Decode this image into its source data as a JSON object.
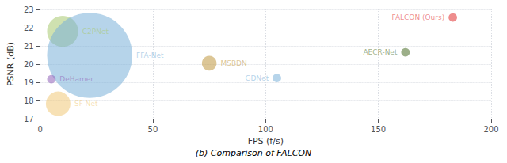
{
  "chart_data": {
    "type": "scatter",
    "title": "(b) Comparison of FALCON",
    "xlabel": "FPS (f/s)",
    "ylabel": "PSNR (dB)",
    "labels": [
      "C2PNet",
      "FFA-Net",
      "MSBDN",
      "GDNet",
      "DeHamer",
      "SF Net",
      "AECR-Net",
      "FALCON (Ours)"
    ],
    "x": [
      10,
      22,
      75,
      105,
      5,
      8,
      162,
      183
    ],
    "values": [
      21.8,
      20.48,
      20.05,
      19.23,
      19.17,
      17.82,
      20.65,
      22.56
    ],
    "sizes": [
      800,
      6000,
      180,
      60,
      60,
      500,
      60,
      60
    ],
    "colors": [
      "#a8c870",
      "#7ab0d8",
      "#c09840",
      "#7ab0d8",
      "#9060b8",
      "#f0c878",
      "#4a6e28",
      "#e03030"
    ],
    "xlim": [
      0,
      200
    ],
    "ylim": [
      17,
      23
    ],
    "xticks": [
      0,
      50,
      100,
      150,
      200
    ],
    "yticks": [
      17,
      18,
      19,
      20,
      21,
      22,
      23
    ],
    "grid": true
  }
}
